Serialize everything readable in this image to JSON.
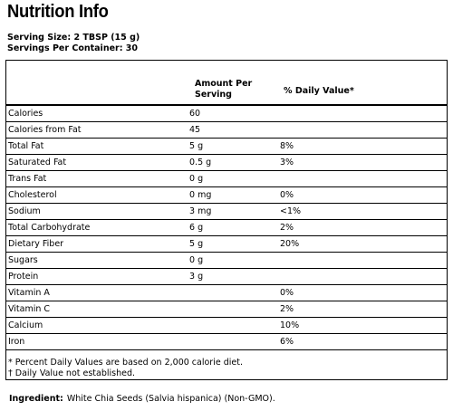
{
  "title": "Nutrition Info",
  "serving_size": "Serving Size: 2 TBSP (15 g)",
  "servings_per_container": "Servings Per Container: 30",
  "header": {
    "amount_per_serving": "Amount Per Serving",
    "daily_value": "% Daily Value*"
  },
  "rows": [
    {
      "name": "Calories",
      "amount": "60",
      "dv": ""
    },
    {
      "name": "Calories from Fat",
      "amount": "45",
      "dv": ""
    },
    {
      "name": "Total Fat",
      "amount": "5 g",
      "dv": "8%"
    },
    {
      "name": "Saturated Fat",
      "amount": "0.5 g",
      "dv": "3%"
    },
    {
      "name": "Trans Fat",
      "amount": "0 g",
      "dv": ""
    },
    {
      "name": "Cholesterol",
      "amount": "0 mg",
      "dv": "0%"
    },
    {
      "name": "Sodium",
      "amount": "3 mg",
      "dv": "<1%"
    },
    {
      "name": "Total Carbohydrate",
      "amount": "6 g",
      "dv": "2%"
    },
    {
      "name": "Dietary Fiber",
      "amount": "5 g",
      "dv": "20%"
    },
    {
      "name": "Sugars",
      "amount": "0 g",
      "dv": ""
    },
    {
      "name": "Protein",
      "amount": "3 g",
      "dv": ""
    },
    {
      "name": "Vitamin A",
      "amount": "",
      "dv": "0%"
    },
    {
      "name": "Vitamin C",
      "amount": "",
      "dv": "2%"
    },
    {
      "name": "Calcium",
      "amount": "",
      "dv": "10%"
    },
    {
      "name": "Iron",
      "amount": "",
      "dv": "6%"
    }
  ],
  "footnotes": [
    "* Percent Daily Values are based on 2,000 calorie diet.",
    "† Daily Value not established."
  ],
  "ingredient": {
    "label": "Ingredient:",
    "value": "White Chia Seeds (Salvia hispanica) (Non-GMO)."
  }
}
